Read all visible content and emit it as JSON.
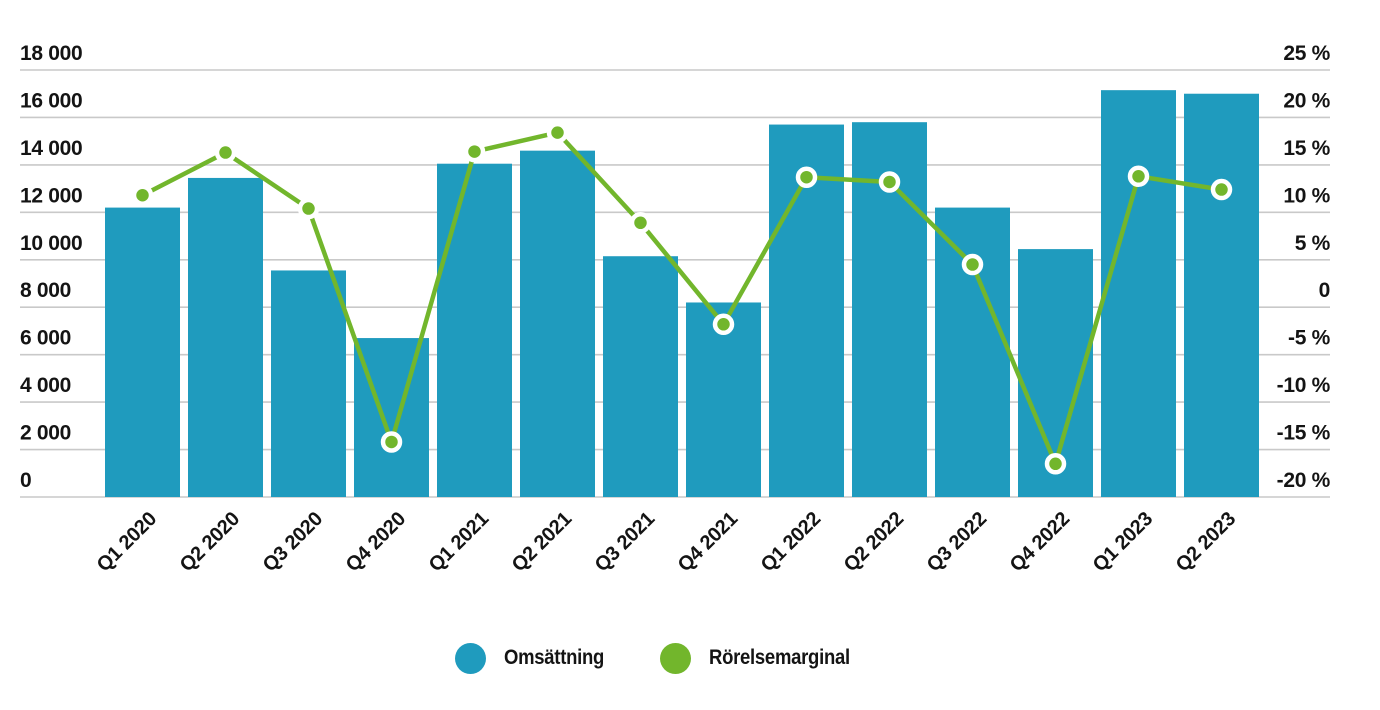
{
  "chart_data": {
    "type": "combo-bar-line",
    "categories": [
      "Q1 2020",
      "Q2 2020",
      "Q3 2020",
      "Q4 2020",
      "Q1 2021",
      "Q2 2021",
      "Q3 2021",
      "Q4 2021",
      "Q1 2022",
      "Q2 2022",
      "Q3 2022",
      "Q4 2022",
      "Q1 2023",
      "Q2 2023"
    ],
    "series": [
      {
        "name": "Omsättning",
        "type": "bar",
        "axis": "left",
        "color": "#1f9bbe",
        "values": [
          12200,
          13450,
          9550,
          6700,
          14050,
          14600,
          10150,
          8200,
          15700,
          15800,
          12200,
          10450,
          17150,
          17000
        ]
      },
      {
        "name": "Rörelsemarginal",
        "type": "line",
        "axis": "right",
        "color": "#72b62c",
        "values": [
          11.8,
          16.3,
          10.4,
          -14.2,
          16.4,
          18.4,
          8.9,
          -1.8,
          13.7,
          13.2,
          4.5,
          -16.5,
          13.8,
          12.4
        ]
      }
    ],
    "left_axis": {
      "min": 0,
      "max": 18000,
      "tick_step": 2000,
      "ticks": [
        {
          "value": 18000,
          "label": "18 000"
        },
        {
          "value": 16000,
          "label": "16 000"
        },
        {
          "value": 14000,
          "label": "14 000"
        },
        {
          "value": 12000,
          "label": "12 000"
        },
        {
          "value": 10000,
          "label": "10 000"
        },
        {
          "value": 8000,
          "label": "8 000"
        },
        {
          "value": 6000,
          "label": "6 000"
        },
        {
          "value": 4000,
          "label": "4 000"
        },
        {
          "value": 2000,
          "label": "2 000"
        },
        {
          "value": 0,
          "label": "0"
        }
      ]
    },
    "right_axis": {
      "min": -20,
      "max": 25,
      "tick_step": 5,
      "ticks": [
        {
          "value": 25,
          "label": "25 %"
        },
        {
          "value": 20,
          "label": "20 %"
        },
        {
          "value": 15,
          "label": "15 %"
        },
        {
          "value": 10,
          "label": "10 %"
        },
        {
          "value": 5,
          "label": "5 %"
        },
        {
          "value": 0,
          "label": "0"
        },
        {
          "value": -5,
          "label": "-5 %"
        },
        {
          "value": -10,
          "label": "-10 %"
        },
        {
          "value": -15,
          "label": "-15 %"
        },
        {
          "value": -20,
          "label": "-20 %"
        }
      ]
    },
    "grid": true,
    "legend_position": "bottom"
  },
  "legend": {
    "items": [
      {
        "label": "Omsättning",
        "color": "#1f9bbe"
      },
      {
        "label": "Rörelsemarginal",
        "color": "#72b62c"
      }
    ]
  },
  "colors": {
    "bar": "#1f9bbe",
    "line": "#72b62c",
    "gridline": "#c9c9c9",
    "text": "#141414",
    "background": "#ffffff",
    "point_ring": "#ffffff"
  }
}
